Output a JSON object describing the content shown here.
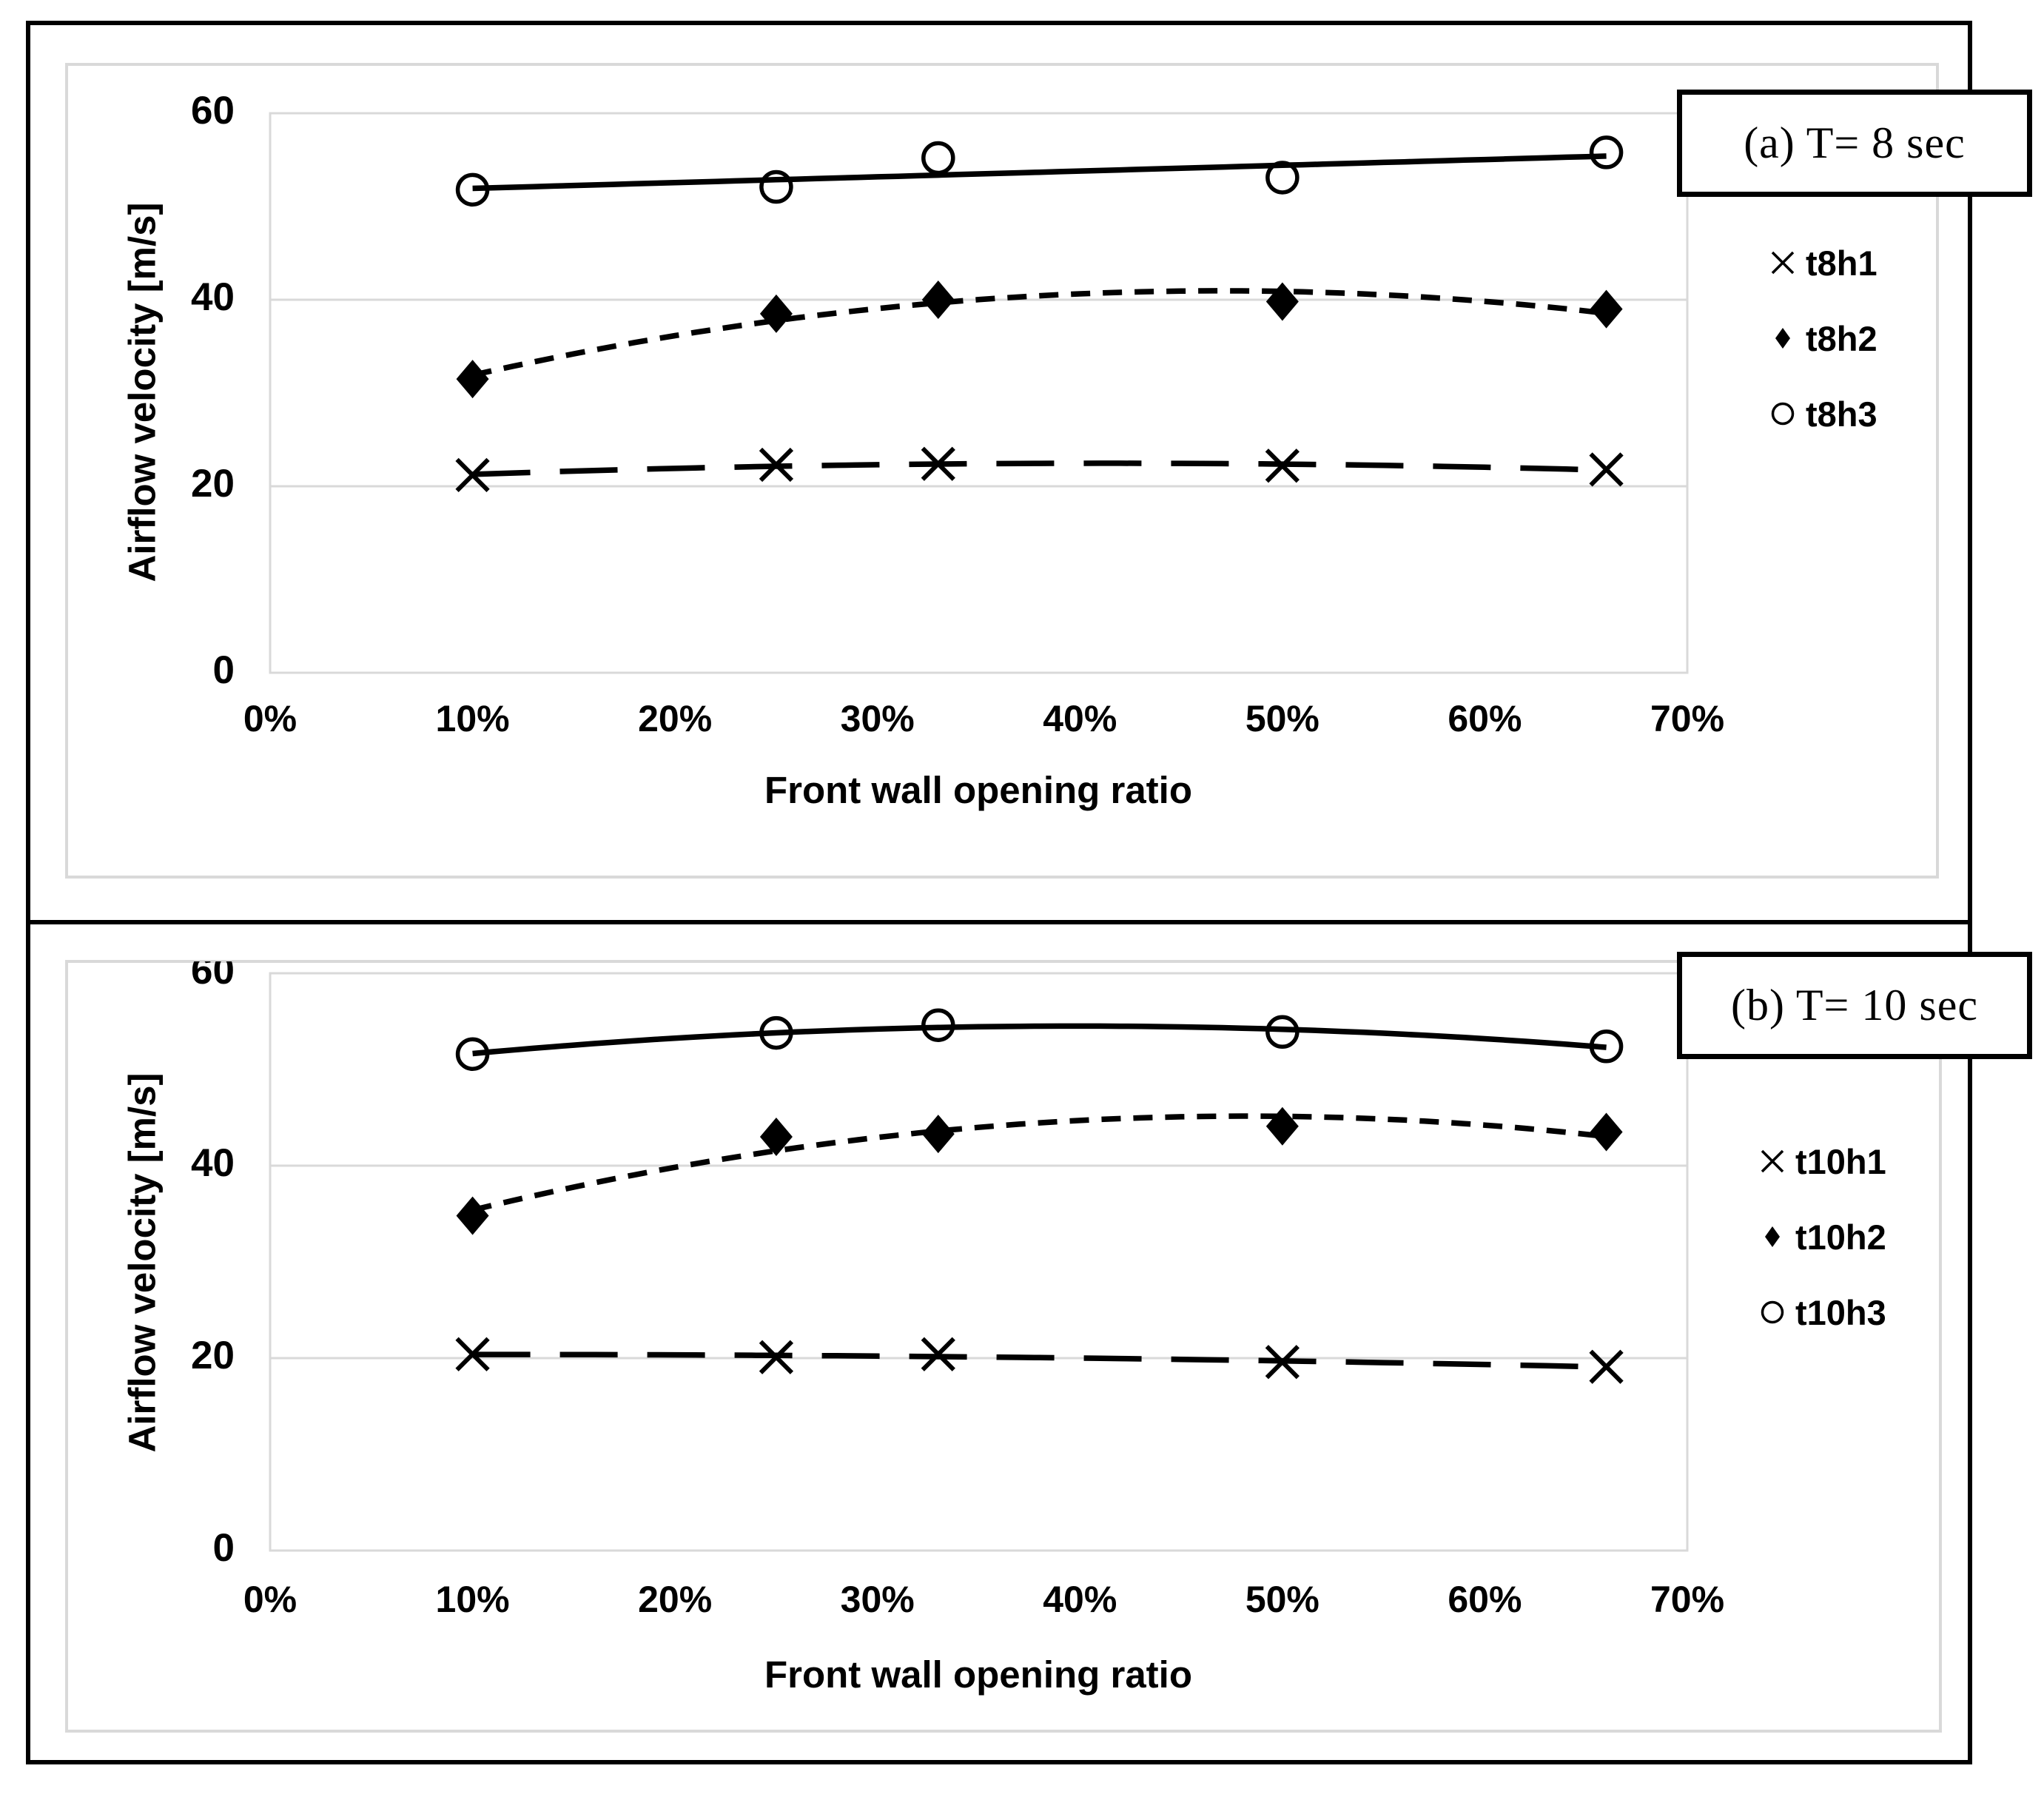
{
  "figure": {
    "background": "#ffffff",
    "colors": {
      "ink": "#000000",
      "gridline": "#d9d9d9",
      "frame": "#d9d9d9"
    },
    "panels": [
      {
        "id": "a",
        "title": "(a)  T= 8 sec"
      },
      {
        "id": "b",
        "title": "(b) T= 10 sec"
      }
    ]
  },
  "chart_data": [
    {
      "type": "scatter",
      "title": "(a)  T= 8 sec",
      "xlabel": "Front wall opening ratio",
      "ylabel": "Airflow velocity [m/s]",
      "x_percent": [
        10,
        25,
        33,
        50,
        66
      ],
      "xlim": [
        0,
        70
      ],
      "ylim": [
        0,
        60
      ],
      "x_tick_labels": [
        "0%",
        "10%",
        "20%",
        "30%",
        "40%",
        "50%",
        "60%",
        "70%"
      ],
      "y_ticks": [
        0,
        20,
        40,
        60
      ],
      "grid": "horizontal",
      "legend_position": "right",
      "series": [
        {
          "name": "t8h1",
          "marker": "x",
          "line_dash": "long",
          "trend": "quadratic",
          "values": [
            21.2,
            22.3,
            22.4,
            22.2,
            21.8
          ]
        },
        {
          "name": "t8h2",
          "marker": "diamond",
          "line_dash": "short",
          "trend": "quadratic",
          "values": [
            31.5,
            38.5,
            40.0,
            39.8,
            39.0
          ]
        },
        {
          "name": "t8h3",
          "marker": "circle",
          "line_dash": "solid",
          "trend": "linear",
          "values": [
            51.8,
            52.1,
            55.2,
            53.1,
            55.8
          ]
        }
      ]
    },
    {
      "type": "scatter",
      "title": "(b) T= 10 sec",
      "xlabel": "Front wall opening ratio",
      "ylabel": "Airflow velocity [m/s]",
      "x_percent": [
        10,
        25,
        33,
        50,
        66
      ],
      "xlim": [
        0,
        70
      ],
      "ylim": [
        0,
        60
      ],
      "x_tick_labels": [
        "0%",
        "10%",
        "20%",
        "30%",
        "40%",
        "50%",
        "60%",
        "70%"
      ],
      "y_ticks": [
        0,
        20,
        40,
        60
      ],
      "grid": "horizontal",
      "legend_position": "right",
      "series": [
        {
          "name": "t10h1",
          "marker": "x",
          "line_dash": "long",
          "trend": "quadratic",
          "values": [
            20.4,
            20.1,
            20.4,
            19.6,
            19.1
          ]
        },
        {
          "name": "t10h2",
          "marker": "diamond",
          "line_dash": "short",
          "trend": "quadratic",
          "values": [
            34.8,
            43.0,
            43.3,
            44.1,
            43.5
          ]
        },
        {
          "name": "t10h3",
          "marker": "circle",
          "line_dash": "solid",
          "trend": "quadratic",
          "values": [
            51.6,
            53.8,
            54.6,
            53.9,
            52.4
          ]
        }
      ]
    }
  ]
}
